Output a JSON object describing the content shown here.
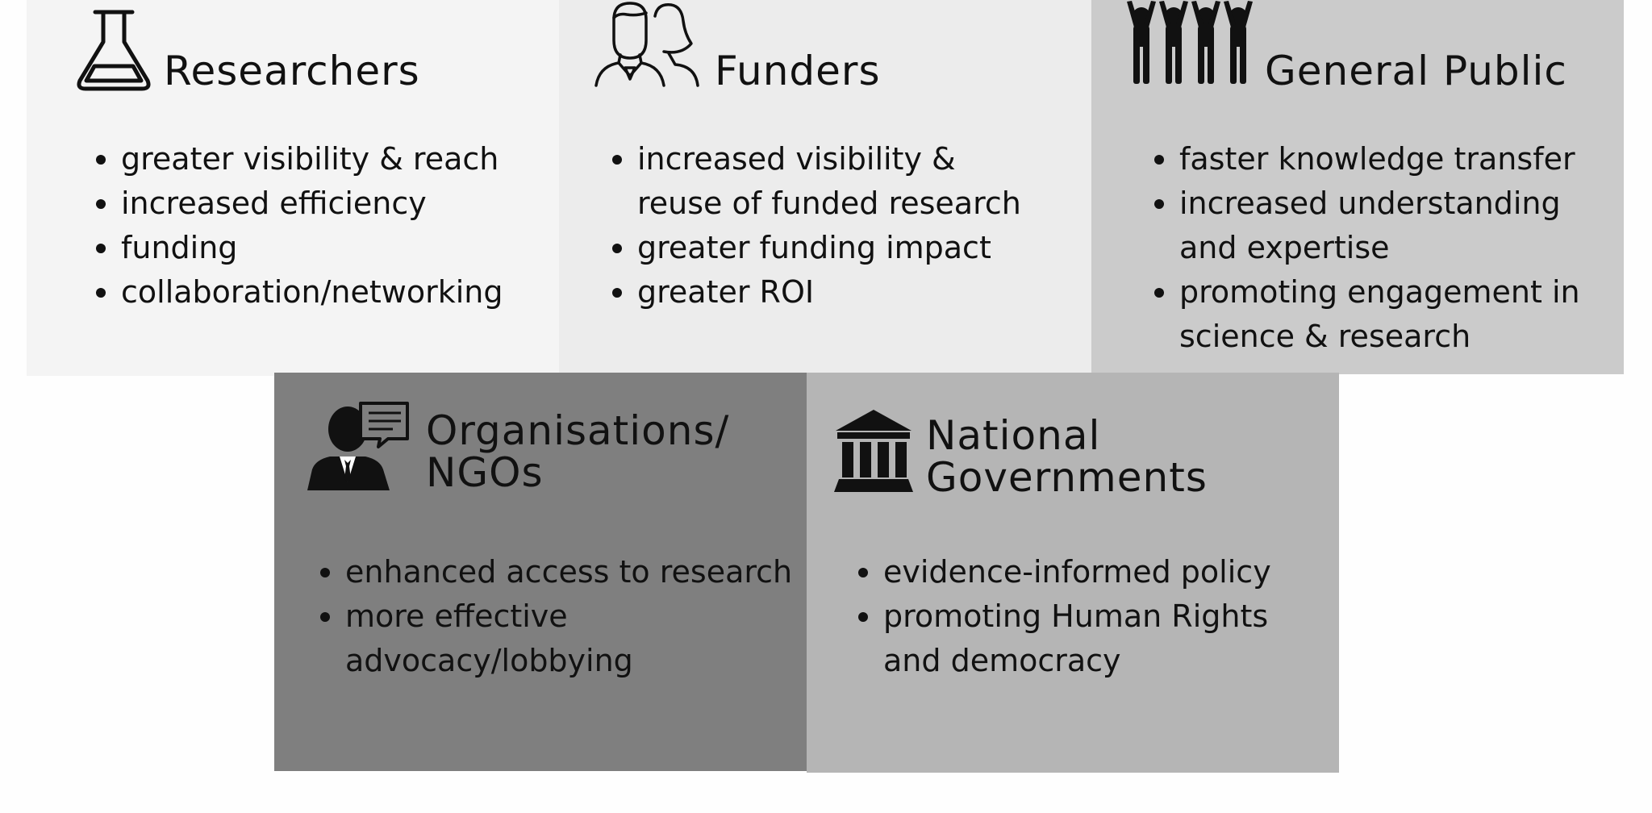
{
  "groups": {
    "researchers": {
      "title_lines": [
        "Researchers"
      ],
      "icon": "flask-icon",
      "items": [
        [
          "greater visibility & reach"
        ],
        [
          "increased efficiency"
        ],
        [
          "funding"
        ],
        [
          "collaboration/networking"
        ]
      ]
    },
    "funders": {
      "title_lines": [
        "Funders"
      ],
      "icon": "people-outline-icon",
      "items": [
        [
          "increased visibility &",
          "reuse of funded research"
        ],
        [
          "greater funding impact"
        ],
        [
          "greater ROI"
        ]
      ]
    },
    "public": {
      "title_lines": [
        "General Public"
      ],
      "icon": "crowd-icon",
      "items": [
        [
          "faster knowledge transfer"
        ],
        [
          "increased understanding",
          "and expertise"
        ],
        [
          "promoting engagement in",
          "science & research"
        ]
      ]
    },
    "orgs": {
      "title_lines": [
        "Organisations/",
        "NGOs"
      ],
      "icon": "businessman-speech-icon",
      "items": [
        [
          "enhanced access to research"
        ],
        [
          "more effective",
          "advocacy/lobbying"
        ]
      ]
    },
    "gov": {
      "title_lines": [
        "National",
        "Governments"
      ],
      "icon": "government-building-icon",
      "items": [
        [
          "evidence-informed policy"
        ],
        [
          "promoting Human Rights",
          "and democracy"
        ]
      ]
    }
  },
  "colors": {
    "researchers_bg": "#f4f4f4",
    "funders_bg": "#ececec",
    "public_bg": "#cbcbcb",
    "orgs_bg": "#7f7f7f",
    "gov_bg": "#b5b5b5",
    "ink": "#111111"
  }
}
